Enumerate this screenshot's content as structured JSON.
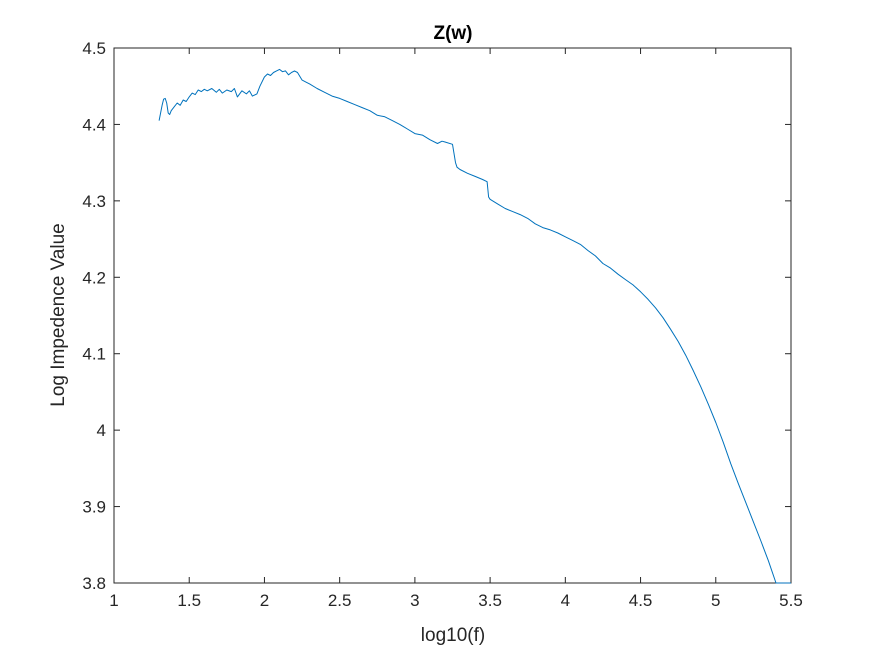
{
  "chart_data": {
    "type": "line",
    "title": "Z(w)",
    "xlabel": "log10(f)",
    "ylabel": "Log Impedence Value",
    "xlim": [
      1,
      5.5
    ],
    "ylim": [
      3.8,
      4.5
    ],
    "xticks": [
      1,
      1.5,
      2,
      2.5,
      3,
      3.5,
      4,
      4.5,
      5,
      5.5
    ],
    "xtick_labels": [
      "1",
      "1.5",
      "2",
      "2.5",
      "3",
      "3.5",
      "4",
      "4.5",
      "5",
      "5.5"
    ],
    "yticks": [
      3.8,
      3.9,
      4.0,
      4.1,
      4.2,
      4.3,
      4.4,
      4.5
    ],
    "ytick_labels": [
      "3.8",
      "3.9",
      "4",
      "4.1",
      "4.2",
      "4.3",
      "4.4",
      "4.5"
    ],
    "grid": false,
    "box": true,
    "series": [
      {
        "color": "#0072BD",
        "x": [
          1.3,
          1.32,
          1.33,
          1.34,
          1.35,
          1.36,
          1.37,
          1.38,
          1.4,
          1.42,
          1.44,
          1.46,
          1.48,
          1.5,
          1.52,
          1.54,
          1.56,
          1.58,
          1.6,
          1.62,
          1.65,
          1.68,
          1.7,
          1.72,
          1.75,
          1.78,
          1.8,
          1.82,
          1.85,
          1.88,
          1.9,
          1.92,
          1.95,
          1.97,
          2.0,
          2.02,
          2.04,
          2.06,
          2.08,
          2.1,
          2.12,
          2.14,
          2.16,
          2.18,
          2.2,
          2.22,
          2.25,
          2.28,
          2.3,
          2.35,
          2.4,
          2.45,
          2.5,
          2.55,
          2.6,
          2.65,
          2.7,
          2.75,
          2.8,
          2.85,
          2.9,
          2.95,
          3.0,
          3.05,
          3.1,
          3.15,
          3.18,
          3.2,
          3.25,
          3.27,
          3.28,
          3.3,
          3.35,
          3.4,
          3.45,
          3.48,
          3.49,
          3.5,
          3.55,
          3.6,
          3.65,
          3.7,
          3.75,
          3.8,
          3.85,
          3.9,
          3.95,
          4.0,
          4.05,
          4.1,
          4.15,
          4.2,
          4.25,
          4.3,
          4.35,
          4.4,
          4.45,
          4.5,
          4.55,
          4.6,
          4.65,
          4.7,
          4.75,
          4.8,
          4.85,
          4.9,
          4.95,
          5.0,
          5.05,
          5.1,
          5.15,
          5.2,
          5.25,
          5.3,
          5.35,
          5.4,
          5.45,
          5.5
        ],
        "y": [
          4.405,
          4.425,
          4.433,
          4.434,
          4.428,
          4.415,
          4.413,
          4.418,
          4.423,
          4.428,
          4.425,
          4.432,
          4.43,
          4.436,
          4.441,
          4.439,
          4.445,
          4.443,
          4.446,
          4.444,
          4.447,
          4.442,
          4.446,
          4.441,
          4.445,
          4.443,
          4.447,
          4.436,
          4.444,
          4.44,
          4.444,
          4.437,
          4.44,
          4.45,
          4.462,
          4.466,
          4.464,
          4.468,
          4.47,
          4.472,
          4.469,
          4.47,
          4.465,
          4.468,
          4.47,
          4.468,
          4.458,
          4.455,
          4.453,
          4.447,
          4.442,
          4.437,
          4.434,
          4.43,
          4.426,
          4.422,
          4.418,
          4.412,
          4.41,
          4.405,
          4.4,
          4.394,
          4.388,
          4.386,
          4.38,
          4.375,
          4.378,
          4.377,
          4.374,
          4.35,
          4.344,
          4.341,
          4.336,
          4.332,
          4.328,
          4.325,
          4.305,
          4.302,
          4.296,
          4.29,
          4.286,
          4.282,
          4.277,
          4.27,
          4.265,
          4.262,
          4.258,
          4.253,
          4.248,
          4.243,
          4.235,
          4.228,
          4.218,
          4.212,
          4.204,
          4.197,
          4.19,
          4.181,
          4.171,
          4.16,
          4.147,
          4.132,
          4.116,
          4.098,
          4.078,
          4.057,
          4.034,
          4.01,
          3.984,
          3.956,
          3.93,
          3.905,
          3.88,
          3.855,
          3.829,
          3.8,
          3.8,
          3.8
        ]
      }
    ]
  }
}
